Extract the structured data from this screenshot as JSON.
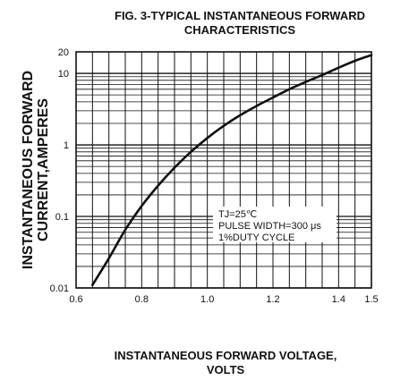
{
  "chart_data": {
    "type": "line",
    "title_lines": [
      "FIG. 3-TYPICAL INSTANTANEOUS FORWARD",
      "CHARACTERISTICS"
    ],
    "ylabel_lines": [
      "INSTANTANEOUS FORWARD",
      "CURRENT,AMPERES"
    ],
    "xlabel_lines": [
      "INSTANTANEOUS FORWARD VOLTAGE,",
      "VOLTS"
    ],
    "x_scale": "linear",
    "y_scale": "log",
    "xlim": [
      0.6,
      1.5
    ],
    "ylim": [
      0.01,
      20
    ],
    "grid": true,
    "x_ticks": [
      {
        "value": 0.6,
        "label": "0.6"
      },
      {
        "value": 0.8,
        "label": "0.8"
      },
      {
        "value": 1.0,
        "label": "1.0"
      },
      {
        "value": 1.2,
        "label": "1.2"
      },
      {
        "value": 1.4,
        "label": "1.4"
      },
      {
        "value": 1.5,
        "label": "1.5"
      }
    ],
    "y_ticks": [
      {
        "value": 0.01,
        "label": "0.01"
      },
      {
        "value": 0.1,
        "label": "0.1"
      },
      {
        "value": 1,
        "label": "1"
      },
      {
        "value": 10,
        "label": "10"
      },
      {
        "value": 20,
        "label": "20"
      }
    ],
    "annotation_lines": [
      "TJ=25℃",
      "PULSE WIDTH=300 μs",
      "1%DUTY CYCLE"
    ],
    "series": [
      {
        "x": [
          0.65,
          0.7,
          0.75,
          0.8,
          0.85,
          0.9,
          0.95,
          1.0,
          1.05,
          1.1,
          1.15,
          1.2,
          1.25,
          1.3,
          1.35,
          1.4,
          1.45,
          1.5
        ],
        "y": [
          0.011,
          0.026,
          0.065,
          0.14,
          0.27,
          0.48,
          0.8,
          1.25,
          1.85,
          2.6,
          3.5,
          4.6,
          6.0,
          7.6,
          9.5,
          12.0,
          15.0,
          18.0
        ]
      }
    ]
  }
}
